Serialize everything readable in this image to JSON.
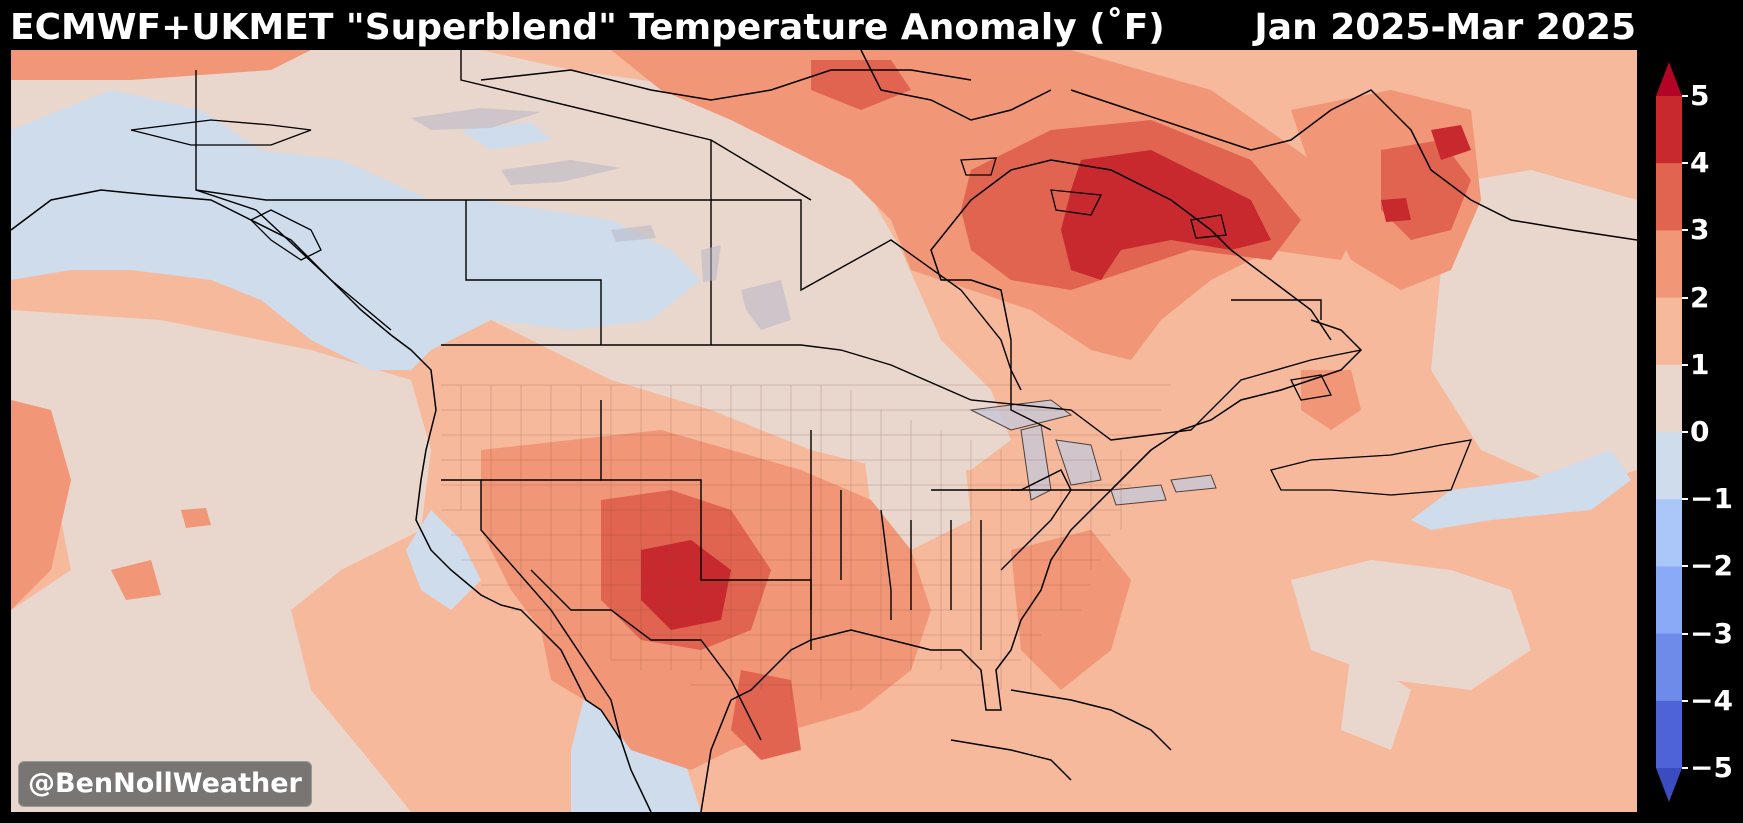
{
  "title": "ECMWF+UKMET \"Superblend\" Temperature Anomaly (˚F)",
  "period": "Jan 2025-Mar 2025",
  "watermark": "@BenNollWeather",
  "colorbar": {
    "ticks": [
      "5",
      "4",
      "3",
      "2",
      "1",
      "0",
      "−1",
      "−2",
      "−3",
      "−4",
      "−5"
    ],
    "levels": [
      {
        "range": "4 to 5",
        "color": "#c8292e"
      },
      {
        "range": "3 to 4",
        "color": "#e0644f"
      },
      {
        "range": "2 to 3",
        "color": "#f19676"
      },
      {
        "range": "1 to 2",
        "color": "#f6b99c"
      },
      {
        "range": "0 to 1",
        "color": "#e9d6cc"
      },
      {
        "range": "-1 to 0",
        "color": "#cfdcec"
      },
      {
        "range": "-2 to -1",
        "color": "#abc6f8"
      },
      {
        "range": "-3 to -2",
        "color": "#8aa9f6"
      },
      {
        "range": "-4 to -3",
        "color": "#6e8bea"
      },
      {
        "range": "-5 to -4",
        "color": "#4e63d8"
      }
    ],
    "over_color": "#b40426",
    "under_color": "#3b4cc0"
  },
  "legend": {
    "position": "right",
    "orientation": "vertical"
  },
  "map": {
    "region": "North America",
    "projection": "equirectangular",
    "features": [
      "coastlines",
      "country borders",
      "state and province borders",
      "US county lines",
      "Great Lakes"
    ]
  }
}
